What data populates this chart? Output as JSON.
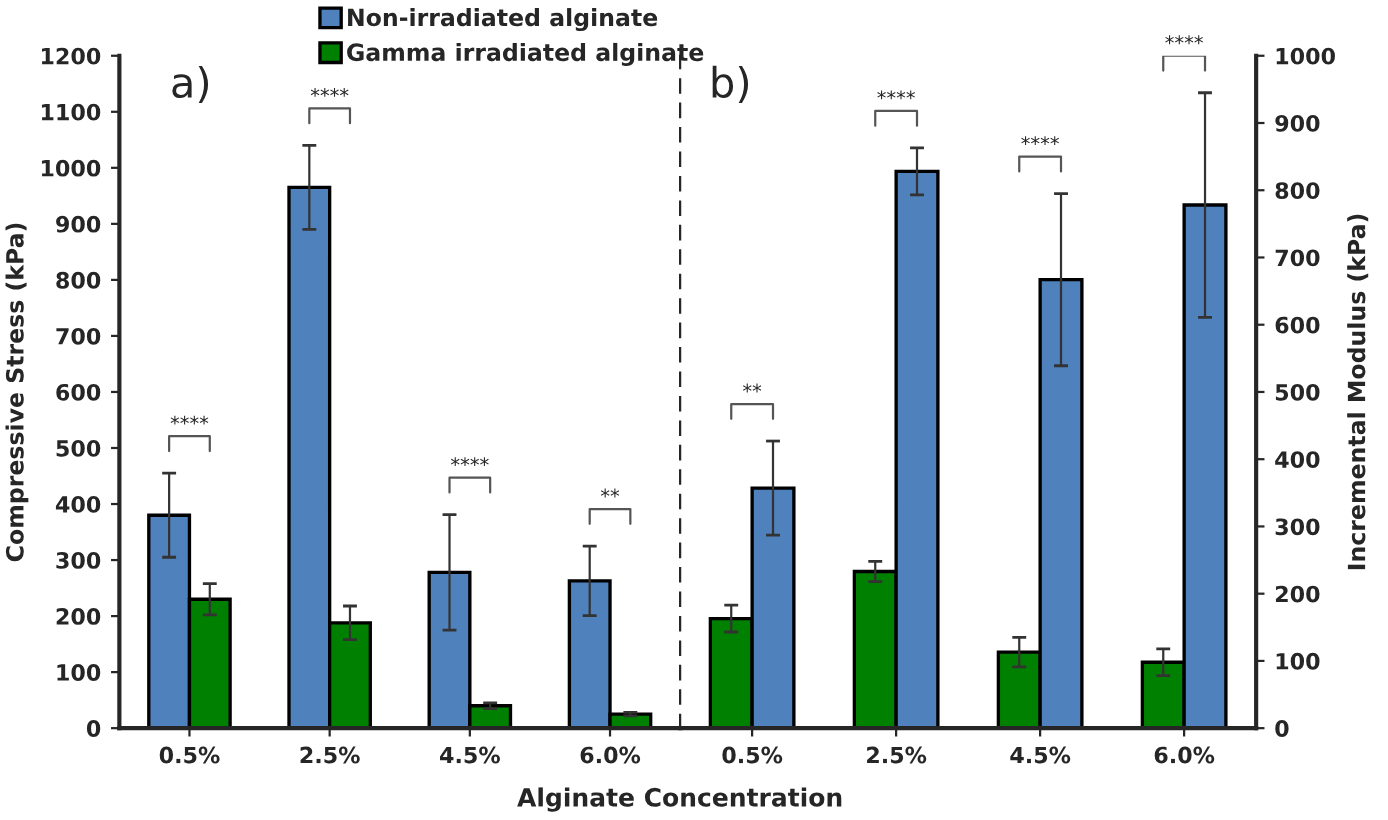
{
  "chart_data": [
    {
      "type": "bar",
      "xlabel": "Alginate Concentration",
      "ylabel": "Compressive Stress (kPa)",
      "categories": [
        "0.5%",
        "2.5%",
        "4.5%",
        "6.0%"
      ],
      "series": [
        {
          "name": "Non-irradiated alginate",
          "color": "#4f81bd",
          "values": [
            380,
            965,
            278,
            263
          ],
          "errors": [
            75,
            75,
            103,
            62
          ]
        },
        {
          "name": "Gamma irradiated alginate",
          "color": "#008000",
          "values": [
            230,
            188,
            40,
            25
          ],
          "errors": [
            28,
            30,
            5,
            3
          ]
        }
      ],
      "ylim": [
        0,
        1200
      ],
      "yticks": [
        0,
        100,
        200,
        300,
        400,
        500,
        600,
        700,
        800,
        900,
        1000,
        1100,
        1200
      ],
      "grid": false,
      "legend": "top right",
      "annotations": [
        "a)",
        "****",
        "****",
        "****",
        "**"
      ]
    },
    {
      "type": "bar",
      "y2label": "Incremental Modulus (kPa)",
      "categories": [
        "0.5%",
        "2.5%",
        "4.5%",
        "6.0%"
      ],
      "series": [
        {
          "color": "#008000",
          "values": [
            163,
            233,
            113,
            98
          ],
          "errors": [
            20,
            15,
            22,
            20
          ],
          "axis": "y2"
        },
        {
          "color": "#4f81bd",
          "values": [
            357,
            828,
            667,
            778
          ],
          "errors": [
            70,
            35,
            128,
            167
          ],
          "axis": "y2"
        }
      ],
      "y2lim": [
        0,
        1000
      ],
      "y2ticks": [
        0,
        100,
        200,
        300,
        400,
        500,
        600,
        700,
        800,
        900,
        1000
      ],
      "grid": false,
      "annotations": [
        "b)",
        "**",
        "****",
        "****",
        "****"
      ]
    }
  ]
}
